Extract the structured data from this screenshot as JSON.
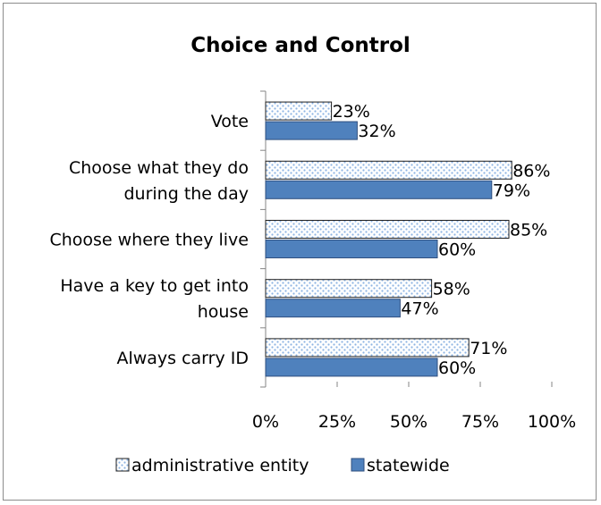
{
  "chart_data": {
    "type": "bar",
    "orientation": "horizontal",
    "title": "Choice and Control",
    "xlabel": "",
    "ylabel": "",
    "xlim": [
      0,
      100
    ],
    "x_ticks": [
      "0%",
      "25%",
      "50%",
      "75%",
      "100%"
    ],
    "categories": [
      [
        "Vote"
      ],
      [
        "Choose what they do",
        "during the day"
      ],
      [
        "Choose where they live"
      ],
      [
        "Have a key to get into",
        "house"
      ],
      [
        "Always carry ID"
      ]
    ],
    "series": [
      {
        "name": "administrative entity",
        "values": [
          23,
          86,
          85,
          58,
          71
        ],
        "labels": [
          "23%",
          "86%",
          "85%",
          "58%",
          "71%"
        ],
        "pattern": "dotted",
        "color": "#c5d9f1"
      },
      {
        "name": "statewide",
        "values": [
          32,
          79,
          60,
          47,
          60
        ],
        "labels": [
          "32%",
          "79%",
          "60%",
          "47%",
          "60%"
        ],
        "pattern": "solid",
        "color": "#4f81bd"
      }
    ],
    "grid": false,
    "legend": "bottom"
  }
}
